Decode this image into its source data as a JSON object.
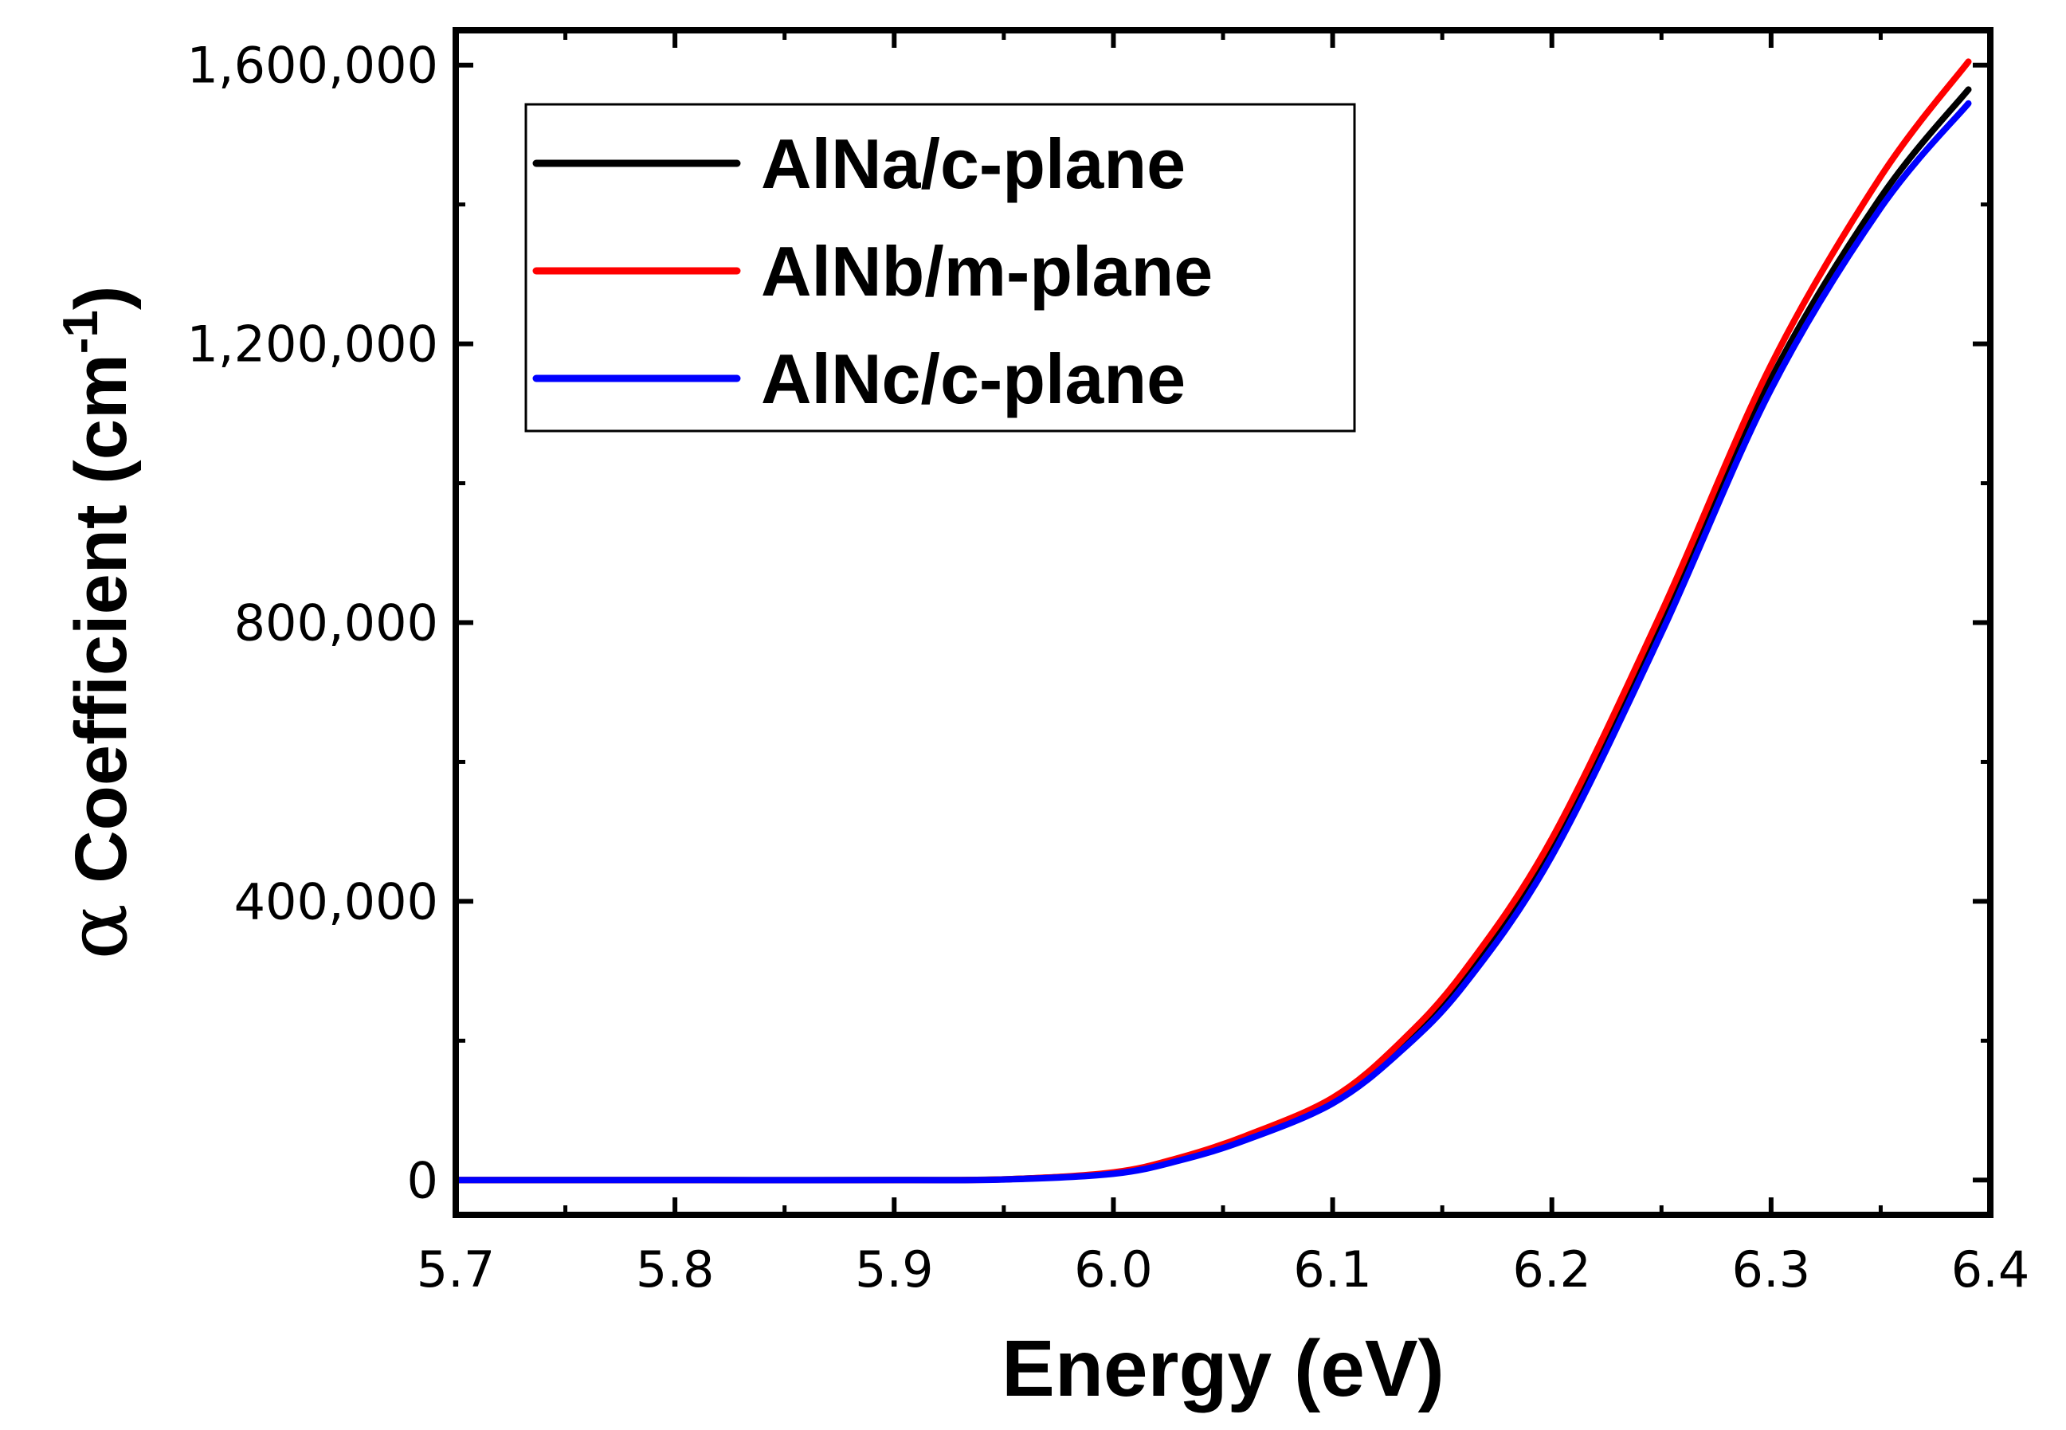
{
  "chart_data": {
    "type": "line",
    "title": "",
    "xlabel": "Energy (eV)",
    "ylabel": {
      "symbol": "α",
      "text": " Coefficient (cm",
      "superscript": "-1",
      "suffix": ")"
    },
    "xlim": [
      5.7,
      6.4
    ],
    "ylim": [
      -50000,
      1650000
    ],
    "x_ticks": [
      5.7,
      5.8,
      5.9,
      6.0,
      6.1,
      6.2,
      6.3,
      6.4
    ],
    "x_tick_labels": [
      "5.7",
      "5.8",
      "5.9",
      "6.0",
      "6.1",
      "6.2",
      "6.3",
      "6.4"
    ],
    "y_ticks": [
      0,
      400000,
      800000,
      1200000,
      1600000
    ],
    "y_tick_labels": [
      "0",
      "400,000",
      "800,000",
      "1,200,000",
      "1,600,000"
    ],
    "grid": false,
    "legend_position": "top-left",
    "series": [
      {
        "name": "AlNa/c-plane",
        "color": "#000000",
        "x": [
          5.7,
          5.8,
          5.9,
          5.95,
          6.0,
          6.03,
          6.06,
          6.1,
          6.13,
          6.16,
          6.2,
          6.25,
          6.3,
          6.35,
          6.39
        ],
        "y": [
          0,
          0,
          0,
          1000,
          10000,
          30000,
          60000,
          115000,
          190000,
          290000,
          480000,
          800000,
          1150000,
          1410000,
          1565000
        ]
      },
      {
        "name": "AlNb/m-plane",
        "color": "#ff0000",
        "x": [
          5.7,
          5.8,
          5.9,
          5.95,
          6.0,
          6.03,
          6.06,
          6.1,
          6.13,
          6.16,
          6.2,
          6.25,
          6.3,
          6.35,
          6.39
        ],
        "y": [
          0,
          0,
          0,
          1000,
          11000,
          32000,
          63000,
          118000,
          195000,
          300000,
          490000,
          815000,
          1170000,
          1440000,
          1605000
        ]
      },
      {
        "name": "AlNc/c-plane",
        "color": "#0000ff",
        "x": [
          5.7,
          5.8,
          5.9,
          5.95,
          6.0,
          6.03,
          6.06,
          6.1,
          6.13,
          6.16,
          6.2,
          6.25,
          6.3,
          6.35,
          6.39
        ],
        "y": [
          0,
          0,
          0,
          800,
          9000,
          28000,
          57000,
          110000,
          182000,
          280000,
          465000,
          785000,
          1135000,
          1395000,
          1545000
        ]
      }
    ]
  }
}
